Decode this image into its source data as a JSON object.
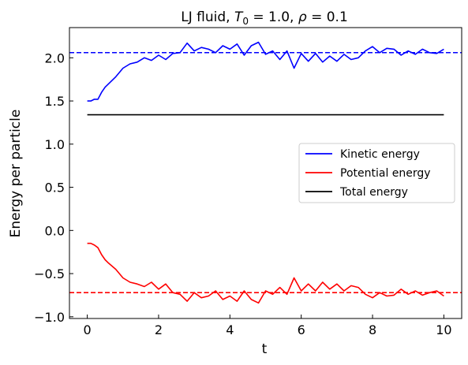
{
  "chart_data": {
    "type": "line",
    "title": "LJ fluid, T₀ = 1.0, ρ = 0.1",
    "title_parts": {
      "prefix": "LJ fluid, ",
      "T_symbol": "T",
      "T_sub": "0",
      "T_value": " = 1.0, ",
      "rho_symbol": "ρ",
      "rho_value": " = 0.1"
    },
    "xlabel": "t",
    "ylabel": "Energy per particle",
    "xlim": [
      -0.5,
      10.5
    ],
    "ylim": [
      -1.02,
      2.35
    ],
    "x_ticks": [
      0,
      2,
      4,
      6,
      8,
      10
    ],
    "x_tick_labels": [
      "0",
      "2",
      "4",
      "6",
      "8",
      "10"
    ],
    "y_ticks": [
      -1.0,
      -0.5,
      0.0,
      0.5,
      1.0,
      1.5,
      2.0
    ],
    "y_tick_labels": [
      "−1.0",
      "−0.5",
      "0.0",
      "0.5",
      "1.0",
      "1.5",
      "2.0"
    ],
    "grid": false,
    "legend_position": "center-right",
    "legend": [
      {
        "name": "Kinetic energy",
        "color": "#0000ff"
      },
      {
        "name": "Potential energy",
        "color": "#ff0000"
      },
      {
        "name": "Total energy",
        "color": "#000000"
      }
    ],
    "reference_lines": [
      {
        "y": 2.06,
        "color": "#0000ff",
        "style": "dashed"
      },
      {
        "y": -0.72,
        "color": "#ff0000",
        "style": "dashed"
      }
    ],
    "series": [
      {
        "name": "Kinetic energy",
        "color": "#0000ff",
        "x": [
          0,
          0.1,
          0.2,
          0.3,
          0.4,
          0.5,
          0.6,
          0.8,
          1.0,
          1.2,
          1.4,
          1.6,
          1.8,
          2.0,
          2.2,
          2.4,
          2.6,
          2.8,
          3.0,
          3.2,
          3.4,
          3.6,
          3.8,
          4.0,
          4.2,
          4.4,
          4.6,
          4.8,
          5.0,
          5.2,
          5.4,
          5.6,
          5.8,
          6.0,
          6.2,
          6.4,
          6.6,
          6.8,
          7.0,
          7.2,
          7.4,
          7.6,
          7.8,
          8.0,
          8.2,
          8.4,
          8.6,
          8.8,
          9.0,
          9.2,
          9.4,
          9.6,
          9.8,
          10.0
        ],
        "y": [
          1.5,
          1.5,
          1.52,
          1.52,
          1.6,
          1.66,
          1.7,
          1.78,
          1.88,
          1.93,
          1.95,
          2.0,
          1.97,
          2.03,
          1.98,
          2.05,
          2.06,
          2.17,
          2.08,
          2.12,
          2.1,
          2.06,
          2.14,
          2.1,
          2.16,
          2.03,
          2.14,
          2.18,
          2.04,
          2.08,
          1.98,
          2.08,
          1.88,
          2.05,
          1.96,
          2.05,
          1.95,
          2.02,
          1.96,
          2.04,
          1.98,
          2.0,
          2.08,
          2.13,
          2.06,
          2.11,
          2.1,
          2.03,
          2.08,
          2.04,
          2.1,
          2.06,
          2.05,
          2.1
        ]
      },
      {
        "name": "Potential energy",
        "color": "#ff0000",
        "x": [
          0,
          0.1,
          0.2,
          0.3,
          0.4,
          0.5,
          0.6,
          0.8,
          1.0,
          1.2,
          1.4,
          1.6,
          1.8,
          2.0,
          2.2,
          2.4,
          2.6,
          2.8,
          3.0,
          3.2,
          3.4,
          3.6,
          3.8,
          4.0,
          4.2,
          4.4,
          4.6,
          4.8,
          5.0,
          5.2,
          5.4,
          5.6,
          5.8,
          6.0,
          6.2,
          6.4,
          6.6,
          6.8,
          7.0,
          7.2,
          7.4,
          7.6,
          7.8,
          8.0,
          8.2,
          8.4,
          8.6,
          8.8,
          9.0,
          9.2,
          9.4,
          9.6,
          9.8,
          10.0
        ],
        "y": [
          -0.15,
          -0.15,
          -0.17,
          -0.2,
          -0.28,
          -0.34,
          -0.38,
          -0.45,
          -0.55,
          -0.6,
          -0.62,
          -0.65,
          -0.6,
          -0.68,
          -0.62,
          -0.72,
          -0.74,
          -0.82,
          -0.72,
          -0.78,
          -0.76,
          -0.7,
          -0.8,
          -0.76,
          -0.82,
          -0.7,
          -0.8,
          -0.84,
          -0.7,
          -0.74,
          -0.66,
          -0.74,
          -0.55,
          -0.7,
          -0.62,
          -0.7,
          -0.6,
          -0.68,
          -0.62,
          -0.7,
          -0.64,
          -0.66,
          -0.74,
          -0.78,
          -0.72,
          -0.76,
          -0.75,
          -0.68,
          -0.74,
          -0.7,
          -0.75,
          -0.72,
          -0.7,
          -0.76
        ]
      },
      {
        "name": "Total energy",
        "color": "#000000",
        "x": [
          0,
          10
        ],
        "y": [
          1.34,
          1.34
        ]
      }
    ]
  }
}
